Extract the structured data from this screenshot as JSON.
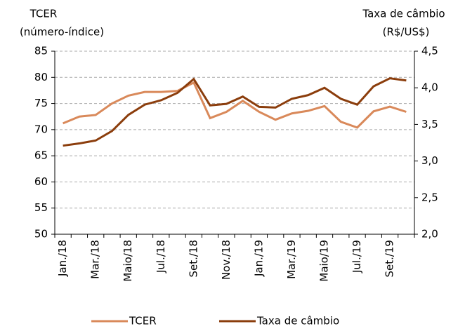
{
  "chart_data": {
    "type": "line",
    "ylabel": [
      "TCER",
      "(número-índice)"
    ],
    "y2label": [
      "Taxa de câmbio",
      "(R$/US$)"
    ],
    "categories": [
      "Jan./18",
      null,
      "Mar./18",
      null,
      "Maio/18",
      null,
      "Jul./18",
      null,
      "Set./18",
      null,
      "Nov./18",
      null,
      "Jan./19",
      null,
      "Mar./19",
      null,
      "Maio/19",
      null,
      "Jul./19",
      null,
      "Set./19",
      null
    ],
    "series": [
      {
        "name": "TCER",
        "color": "#d9895a",
        "values": [
          71.2,
          72.5,
          72.8,
          75.0,
          76.5,
          77.2,
          77.2,
          77.4,
          79.0,
          72.2,
          73.4,
          75.5,
          73.4,
          71.9,
          73.1,
          73.6,
          74.5,
          71.5,
          70.4,
          73.5,
          74.4,
          73.4
        ]
      },
      {
        "name": "Taxa de câmbio",
        "color": "#8b3d0c",
        "axis": "y2",
        "values": [
          3.21,
          3.24,
          3.28,
          3.41,
          3.63,
          3.77,
          3.83,
          3.93,
          4.12,
          3.76,
          3.78,
          3.88,
          3.74,
          3.73,
          3.85,
          3.9,
          4.0,
          3.85,
          3.77,
          4.02,
          4.13,
          4.1
        ]
      }
    ],
    "ylim": [
      50,
      85
    ],
    "yticks": [
      50,
      55,
      60,
      65,
      70,
      75,
      80,
      85
    ],
    "y2lim": [
      2.0,
      4.5
    ],
    "y2ticks": [
      {
        "value": 2.0,
        "label": "2,0"
      },
      {
        "value": 2.5,
        "label": "2,5"
      },
      {
        "value": 3.0,
        "label": "3,0"
      },
      {
        "value": 3.5,
        "label": "3,5"
      },
      {
        "value": 4.0,
        "label": "4,0"
      },
      {
        "value": 4.5,
        "label": "4,5"
      }
    ],
    "grid": true,
    "legend": "bottom"
  }
}
